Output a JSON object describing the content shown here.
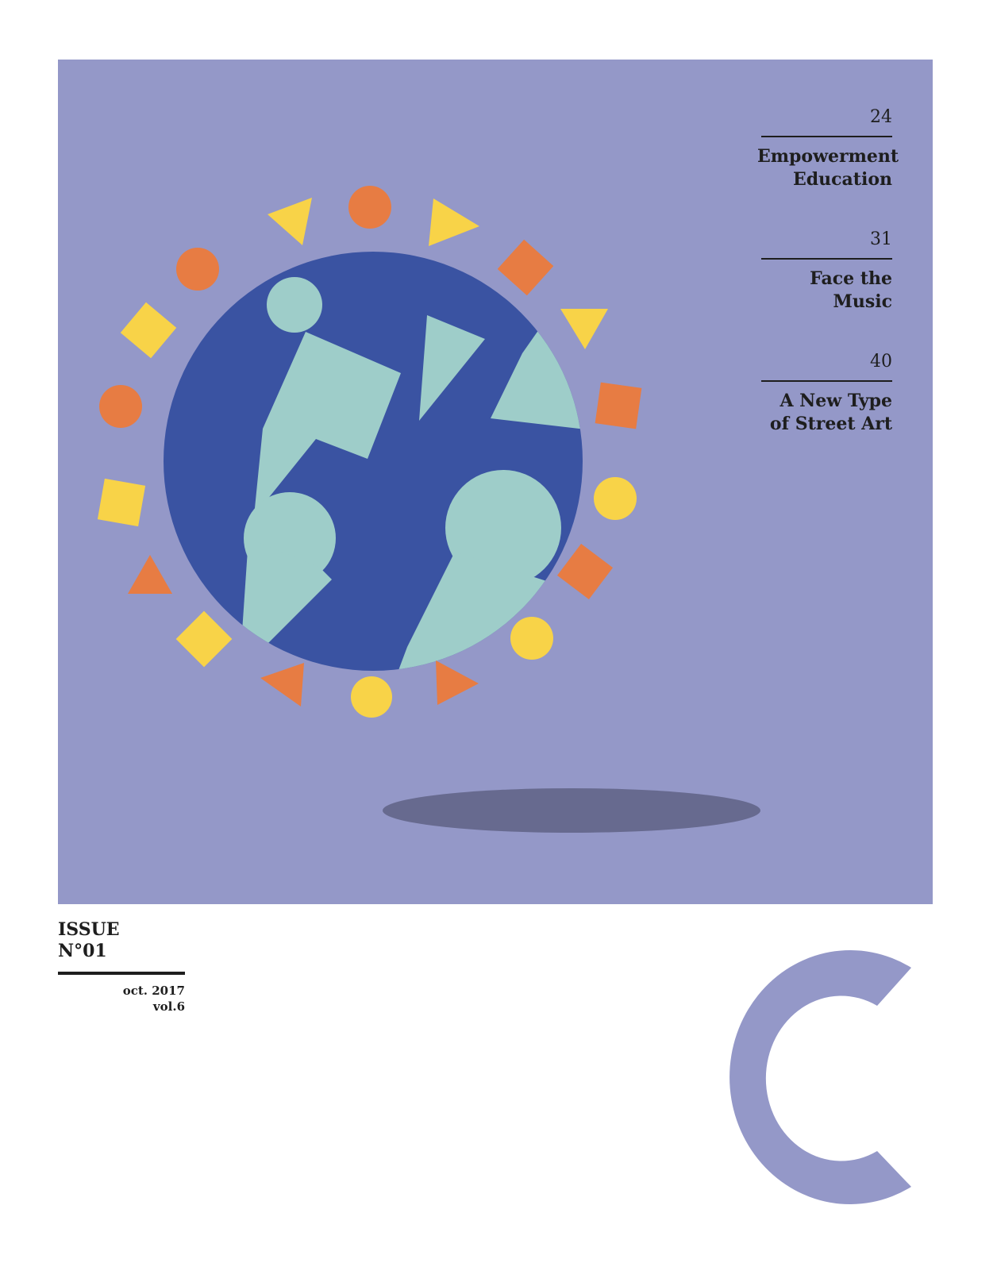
{
  "colors": {
    "panel": "#9498c8",
    "globe": "#3a53a2",
    "land": "#9ecdc9",
    "orange": "#e77c43",
    "yellow": "#f8d348",
    "shadow": "#676a8f",
    "text": "#1e1e1e",
    "logo": "#9498c8"
  },
  "contents": [
    {
      "page": "24",
      "title": "Empowerment\nEducation"
    },
    {
      "page": "31",
      "title": "Face the\nMusic"
    },
    {
      "page": "40",
      "title": "A New Type\nof Street Art"
    }
  ],
  "issue": {
    "line1": "ISSUE",
    "line2": "N°01",
    "date": "oct. 2017",
    "volume": "vol.6"
  }
}
